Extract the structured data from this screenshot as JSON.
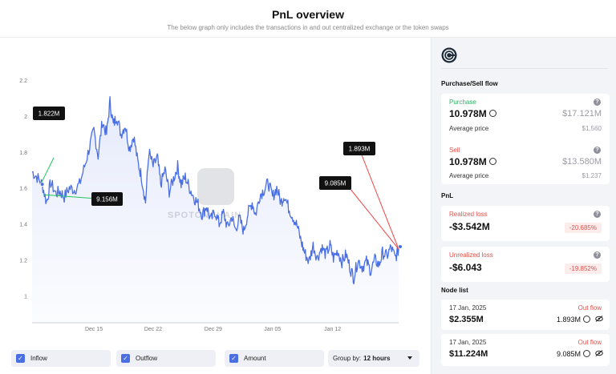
{
  "header": {
    "title": "PnL overview",
    "subtitle": "The below graph only includes the transactions in and out centralized exchange or the token swaps"
  },
  "chart_data": {
    "type": "line",
    "x_ticks": [
      "Dec 15",
      "Dec 22",
      "Dec 29",
      "Jan 05",
      "Jan 12"
    ],
    "y_ticks": [
      "2.2",
      "2",
      "1.8",
      "1.6",
      "1.4",
      "1.2",
      "1"
    ],
    "ylim": [
      0.85,
      2.2
    ],
    "series": [
      {
        "color": "#4a6fe3",
        "points": [
          [
            0,
            1.69
          ],
          [
            0.6,
            1.66
          ],
          [
            1.2,
            1.62
          ],
          [
            1.7,
            1.52
          ],
          [
            2.2,
            1.63
          ],
          [
            2.8,
            1.57
          ],
          [
            3.3,
            1.58
          ],
          [
            3.8,
            1.55
          ],
          [
            4.4,
            1.6
          ],
          [
            5.0,
            1.59
          ],
          [
            5.6,
            1.62
          ],
          [
            6.2,
            1.72
          ],
          [
            6.8,
            1.83
          ],
          [
            7.3,
            1.92
          ],
          [
            7.8,
            1.78
          ],
          [
            8.3,
            1.97
          ],
          [
            8.8,
            1.9
          ],
          [
            9.2,
            2.08
          ],
          [
            9.6,
            1.95
          ],
          [
            10.0,
            2.0
          ],
          [
            10.5,
            1.9
          ],
          [
            11.0,
            1.95
          ],
          [
            11.5,
            1.82
          ],
          [
            12.0,
            1.89
          ],
          [
            12.5,
            1.74
          ],
          [
            12.9,
            1.67
          ],
          [
            13.4,
            1.52
          ],
          [
            13.8,
            1.8
          ],
          [
            14.3,
            1.72
          ],
          [
            14.8,
            1.77
          ],
          [
            15.2,
            1.62
          ],
          [
            15.7,
            1.7
          ],
          [
            16.2,
            1.58
          ],
          [
            16.7,
            1.65
          ],
          [
            17.2,
            1.72
          ],
          [
            17.6,
            1.62
          ],
          [
            18.1,
            1.66
          ],
          [
            18.6,
            1.6
          ],
          [
            19.1,
            1.55
          ],
          [
            19.6,
            1.51
          ],
          [
            20.1,
            1.45
          ],
          [
            20.6,
            1.5
          ],
          [
            21.1,
            1.42
          ],
          [
            21.6,
            1.47
          ],
          [
            22.1,
            1.4
          ],
          [
            22.6,
            1.46
          ],
          [
            23.1,
            1.38
          ],
          [
            23.6,
            1.44
          ],
          [
            24.0,
            1.37
          ],
          [
            24.5,
            1.43
          ],
          [
            25.0,
            1.36
          ],
          [
            25.5,
            1.46
          ],
          [
            26.0,
            1.52
          ],
          [
            26.4,
            1.45
          ],
          [
            26.9,
            1.56
          ],
          [
            27.4,
            1.59
          ],
          [
            27.9,
            1.63
          ],
          [
            28.4,
            1.55
          ],
          [
            28.9,
            1.6
          ],
          [
            29.4,
            1.52
          ],
          [
            29.8,
            1.56
          ],
          [
            30.3,
            1.49
          ],
          [
            30.8,
            1.44
          ],
          [
            31.3,
            1.39
          ],
          [
            31.8,
            1.3
          ],
          [
            32.2,
            1.24
          ],
          [
            32.7,
            1.19
          ],
          [
            33.2,
            1.28
          ],
          [
            33.7,
            1.21
          ],
          [
            34.2,
            1.27
          ],
          [
            34.7,
            1.23
          ],
          [
            35.2,
            1.28
          ],
          [
            35.6,
            1.21
          ],
          [
            36.1,
            1.25
          ],
          [
            36.6,
            1.19
          ],
          [
            37.1,
            1.23
          ],
          [
            37.6,
            1.15
          ],
          [
            38.0,
            1.1
          ],
          [
            38.5,
            1.2
          ],
          [
            39.0,
            1.16
          ],
          [
            39.5,
            1.19
          ],
          [
            40.0,
            1.14
          ],
          [
            40.5,
            1.2
          ],
          [
            41.0,
            1.17
          ],
          [
            41.4,
            1.24
          ],
          [
            41.9,
            1.22
          ],
          [
            42.4,
            1.27
          ],
          [
            42.9,
            1.21
          ],
          [
            43.3,
            1.26
          ]
        ]
      }
    ],
    "annotations": [
      {
        "label": "1.822M",
        "color": "#22c55e"
      },
      {
        "label": "9.156M",
        "color": "#22c55e"
      },
      {
        "label": "1.893M",
        "color": "#ef4444"
      },
      {
        "label": "9.085M",
        "color": "#ef4444"
      }
    ],
    "grid": false,
    "watermark": "SPOTONCHAIN"
  },
  "controls": {
    "inflow": "Inflow",
    "outflow": "Outflow",
    "amount": "Amount",
    "group_by_label": "Group by:",
    "group_by_value": "12 hours"
  },
  "sidebar": {
    "purchase_sell_title": "Purchase/Sell flow",
    "purchase": {
      "label": "Purchase",
      "amount": "10.978M",
      "usd": "$17.121M",
      "avg_label": "Average price",
      "avg_value": "$1.560"
    },
    "sell": {
      "label": "Sell",
      "amount": "10.978M",
      "usd": "$13.580M",
      "avg_label": "Average price",
      "avg_value": "$1.237"
    },
    "pnl_title": "PnL",
    "realized": {
      "label": "Realized loss",
      "value": "-$3.542M",
      "pct": "-20.685%"
    },
    "unrealized": {
      "label": "Unrealized loss",
      "value": "-$6.043",
      "pct": "-19.852%"
    },
    "node_list_title": "Node list",
    "nodes": [
      {
        "date": "17 Jan, 2025",
        "direction": "Out flow",
        "usd": "$2.355M",
        "amount": "1.893M"
      },
      {
        "date": "17 Jan, 2025",
        "direction": "Out flow",
        "usd": "$11.224M",
        "amount": "9.085M"
      }
    ]
  },
  "colors": {
    "accent": "#4a6fe3",
    "green": "#2fae63",
    "red": "#e0524b"
  }
}
